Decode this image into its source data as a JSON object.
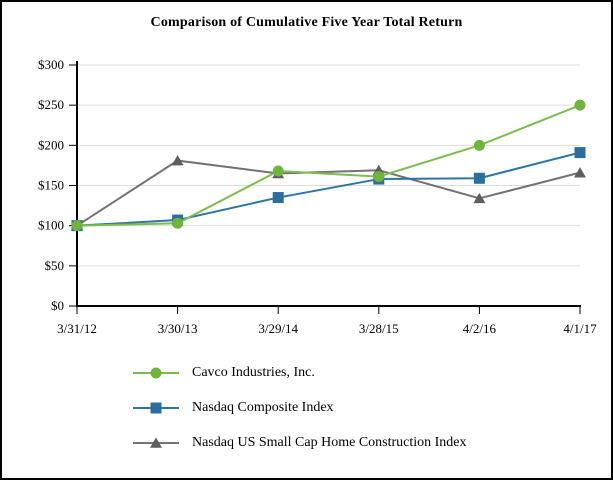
{
  "chart_data": {
    "type": "line",
    "title": "Comparison of Cumulative Five Year Total Return",
    "categories": [
      "3/31/12",
      "3/30/13",
      "3/29/14",
      "3/28/15",
      "4/2/16",
      "4/1/17"
    ],
    "series": [
      {
        "name": "Cavco Industries, Inc.",
        "marker": "circle",
        "line_color": "#7cbc4f",
        "marker_color": "#6fb43c",
        "values": [
          100,
          103,
          168,
          161,
          200,
          250
        ]
      },
      {
        "name": "Nasdaq Composite Index",
        "marker": "square",
        "line_color": "#2e74a4",
        "marker_color": "#2b6e9e",
        "values": [
          100,
          107,
          135,
          158,
          159,
          191
        ]
      },
      {
        "name": "Nasdaq US Small Cap Home Construction Index",
        "marker": "triangle",
        "line_color": "#727274",
        "marker_color": "#5d5e61",
        "values": [
          100,
          181,
          165,
          169,
          134,
          166
        ]
      }
    ],
    "ylim": [
      0,
      300
    ],
    "y_tick_step": 50,
    "y_tick_labels": [
      "$0",
      "$50",
      "$100",
      "$150",
      "$200",
      "$250",
      "$300"
    ],
    "grid": "horizontal",
    "grid_color": "#dcdcdc",
    "axis_color": "#000000",
    "legend_position": "bottom-left"
  }
}
